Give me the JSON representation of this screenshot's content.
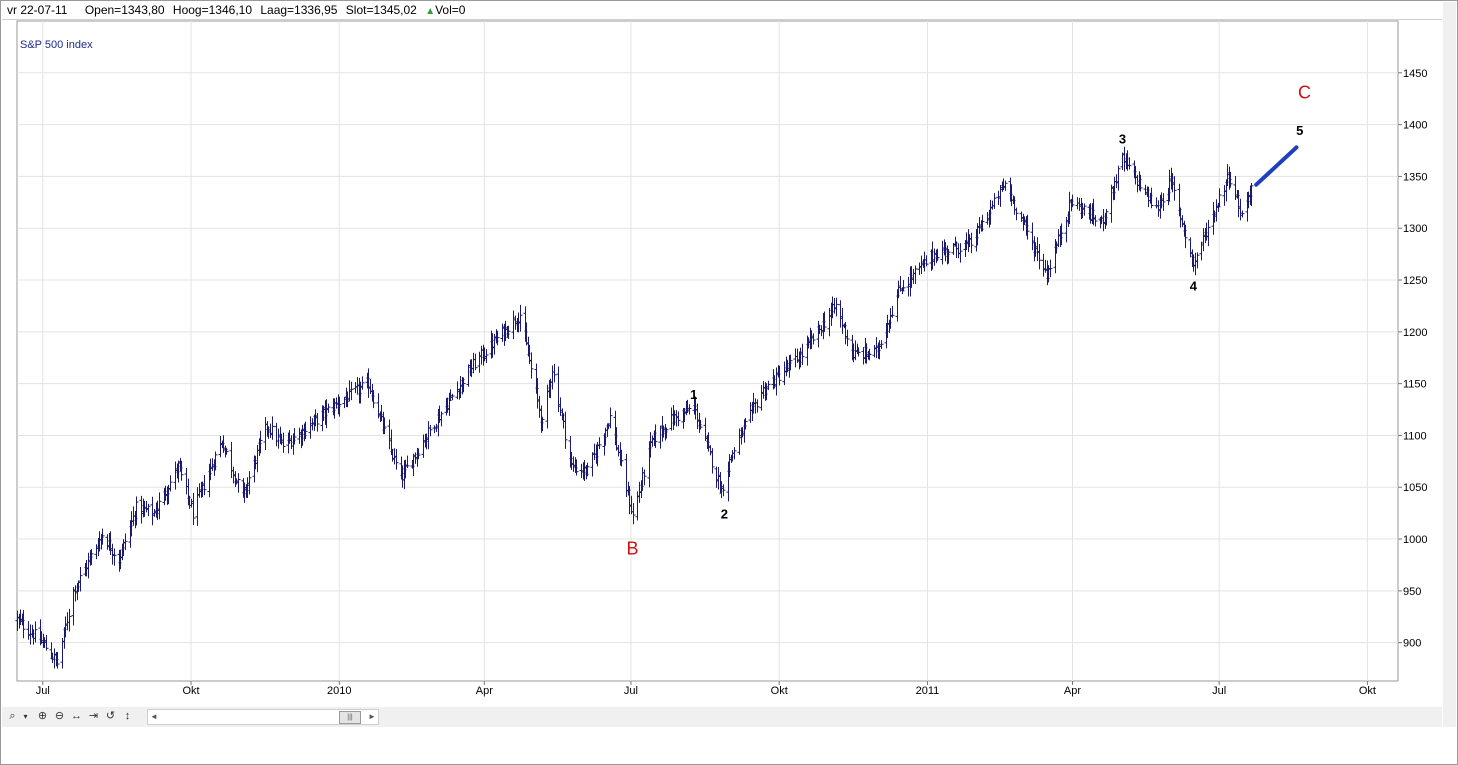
{
  "infobar": {
    "date": "vr 22-07-11",
    "open": "Open=1343,80",
    "high": "Hoog=1346,10",
    "low": "Laag=1336,95",
    "close": "Slot=1345,02",
    "vol": "Vol=0",
    "vol_arrow_color": "#2ea02e"
  },
  "chart_data": {
    "type": "ohlc",
    "title": "S&P 500 index",
    "xlabel": "",
    "ylabel": "",
    "x_ticks": [
      "Jul",
      "Okt",
      "2010",
      "Apr",
      "Jul",
      "Okt",
      "2011",
      "Apr",
      "Jul",
      "Okt"
    ],
    "x_range": [
      "2009-06-15",
      "2011-10-20"
    ],
    "y_ticks": [
      900,
      950,
      1000,
      1050,
      1100,
      1150,
      1200,
      1250,
      1300,
      1350,
      1400,
      1450
    ],
    "ylim": [
      863,
      1500
    ],
    "y_axis_position": "right",
    "grid": true,
    "bar_color": "#1a1a6e",
    "price_path": [
      [
        "2009-06-15",
        922
      ],
      [
        "2009-07-01",
        900
      ],
      [
        "2009-07-10",
        880
      ],
      [
        "2009-07-20",
        950
      ],
      [
        "2009-08-07",
        1005
      ],
      [
        "2009-08-17",
        980
      ],
      [
        "2009-08-28",
        1030
      ],
      [
        "2009-09-08",
        1025
      ],
      [
        "2009-09-23",
        1070
      ],
      [
        "2009-10-02",
        1025
      ],
      [
        "2009-10-20",
        1095
      ],
      [
        "2009-11-02",
        1040
      ],
      [
        "2009-11-17",
        1110
      ],
      [
        "2009-11-27",
        1090
      ],
      [
        "2009-12-10",
        1105
      ],
      [
        "2009-12-28",
        1128
      ],
      [
        "2010-01-19",
        1150
      ],
      [
        "2010-02-08",
        1058
      ],
      [
        "2010-02-26",
        1105
      ],
      [
        "2010-03-25",
        1168
      ],
      [
        "2010-04-23",
        1217
      ],
      [
        "2010-05-07",
        1110
      ],
      [
        "2010-05-13",
        1165
      ],
      [
        "2010-05-25",
        1070
      ],
      [
        "2010-06-04",
        1065
      ],
      [
        "2010-06-18",
        1118
      ],
      [
        "2010-07-02",
        1022
      ],
      [
        "2010-07-14",
        1095
      ],
      [
        "2010-07-26",
        1115
      ],
      [
        "2010-08-09",
        1127
      ],
      [
        "2010-08-26",
        1047
      ],
      [
        "2010-09-01",
        1080
      ],
      [
        "2010-09-20",
        1142
      ],
      [
        "2010-10-15",
        1178
      ],
      [
        "2010-11-05",
        1225
      ],
      [
        "2010-11-16",
        1178
      ],
      [
        "2010-11-30",
        1180
      ],
      [
        "2010-12-15",
        1242
      ],
      [
        "2011-01-05",
        1275
      ],
      [
        "2011-01-28",
        1285
      ],
      [
        "2011-02-18",
        1343
      ],
      [
        "2011-03-01",
        1306
      ],
      [
        "2011-03-16",
        1256
      ],
      [
        "2011-03-31",
        1326
      ],
      [
        "2011-04-19",
        1305
      ],
      [
        "2011-05-02",
        1367
      ],
      [
        "2011-05-23",
        1318
      ],
      [
        "2011-06-01",
        1345
      ],
      [
        "2011-06-15",
        1265
      ],
      [
        "2011-07-07",
        1353
      ],
      [
        "2011-07-15",
        1312
      ],
      [
        "2011-07-22",
        1345
      ]
    ],
    "annotations": [
      {
        "label": "1",
        "date": "2010-08-09",
        "value": 1135,
        "color": "#000000"
      },
      {
        "label": "2",
        "date": "2010-08-28",
        "value": 1020,
        "color": "#000000"
      },
      {
        "label": "B",
        "date": "2010-07-02",
        "value": 985,
        "color": "#cc1111"
      },
      {
        "label": "3",
        "date": "2011-05-02",
        "value": 1382,
        "color": "#000000"
      },
      {
        "label": "4",
        "date": "2011-06-15",
        "value": 1240,
        "color": "#000000"
      },
      {
        "label": "5",
        "date": "2011-08-20",
        "value": 1390,
        "color": "#000000"
      },
      {
        "label": "C",
        "date": "2011-08-23",
        "value": 1425,
        "color": "#cc1111"
      }
    ],
    "projection": {
      "from": [
        "2011-07-24",
        1342
      ],
      "to": [
        "2011-08-18",
        1378
      ],
      "color": "#1f3fbf"
    }
  },
  "toolbar": {
    "icons": [
      "zoom-icon",
      "dropdown-icon",
      "zoom-in-icon",
      "zoom-out-icon",
      "fit-horizontal-icon",
      "scroll-end-icon",
      "reset-icon",
      "fit-vertical-icon"
    ]
  }
}
